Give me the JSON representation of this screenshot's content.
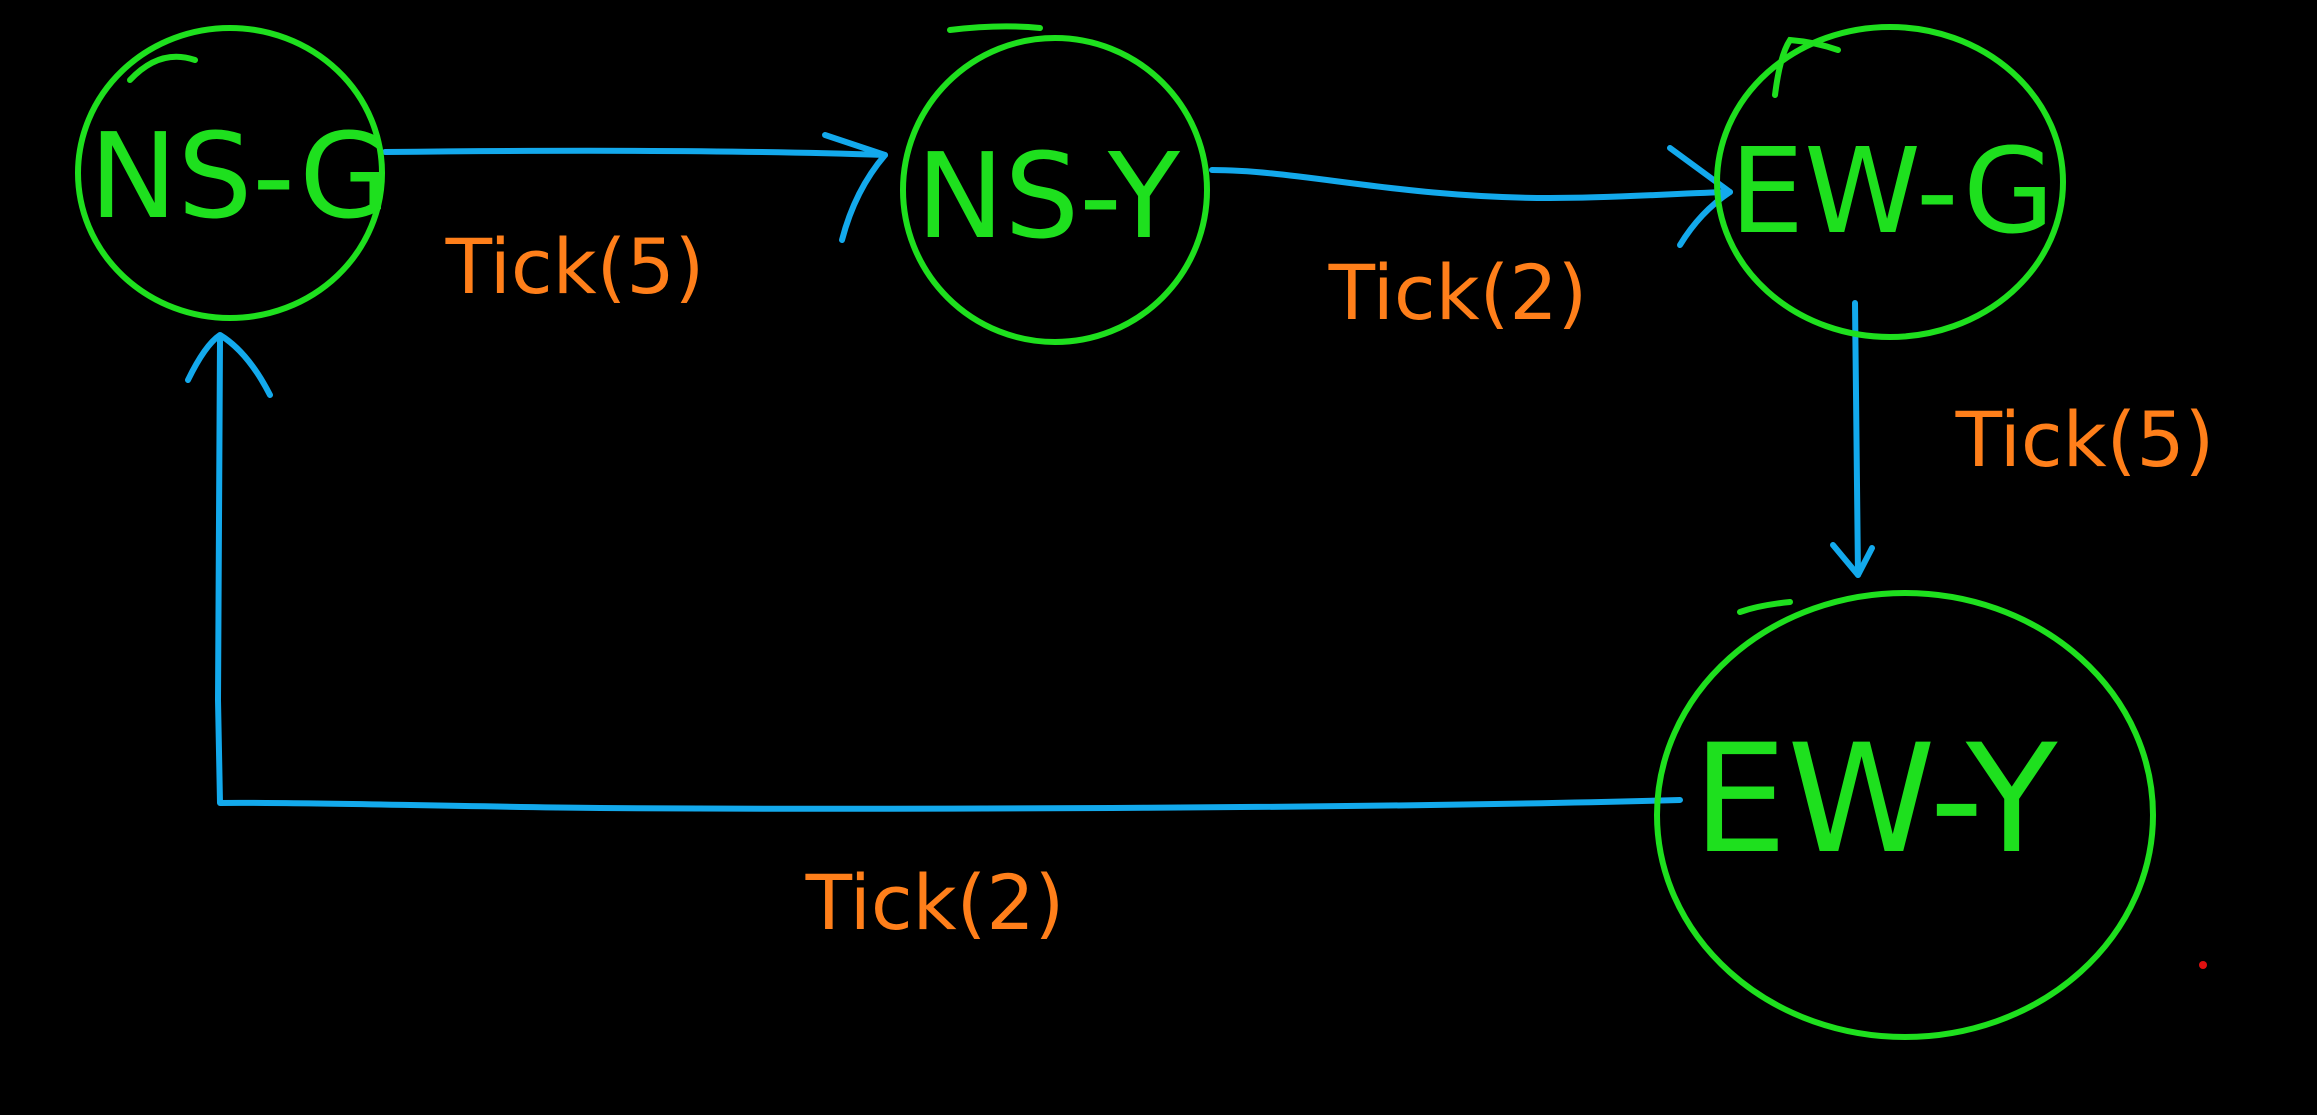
{
  "colors": {
    "background": "#000000",
    "state": "#1ee01e",
    "edge": "#13a9ec",
    "label": "#ff7f1a",
    "dot": "#e01010"
  },
  "states": [
    {
      "id": "ns_g",
      "label": "NS-G"
    },
    {
      "id": "ns_y",
      "label": "NS-Y"
    },
    {
      "id": "ew_g",
      "label": "EW-G"
    },
    {
      "id": "ew_y",
      "label": "EW-Y"
    }
  ],
  "transitions": [
    {
      "from": "ns_g",
      "to": "ns_y",
      "label": "Tick(5)"
    },
    {
      "from": "ns_y",
      "to": "ew_g",
      "label": "Tick(2)"
    },
    {
      "from": "ew_g",
      "to": "ew_y",
      "label": "Tick(5)"
    },
    {
      "from": "ew_y",
      "to": "ns_g",
      "label": "Tick(2)"
    }
  ]
}
